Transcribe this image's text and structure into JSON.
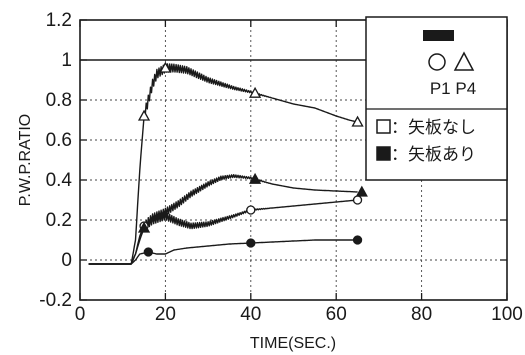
{
  "chart_data": {
    "type": "line",
    "xlabel": "TIME(SEC.)",
    "ylabel": "P.W.P.RATIO",
    "xlim": [
      0,
      100
    ],
    "ylim": [
      -0.2,
      1.2
    ],
    "x_ticks": [
      0,
      20,
      40,
      60,
      80,
      100
    ],
    "x_tick_labels": [
      "0",
      "20",
      "40",
      "60",
      "80",
      "100"
    ],
    "y_ticks": [
      -0.2,
      0,
      0.2,
      0.4,
      0.6,
      0.8,
      1,
      1.2
    ],
    "y_tick_labels": [
      "-0.2",
      "0",
      "0.2",
      "0.4",
      "0.6",
      "0.8",
      "1",
      "1.2"
    ],
    "grid": true,
    "reference_line": 1,
    "legend": {
      "position": "top-right",
      "marker_labels": "P1 P4",
      "entries": [
        {
          "marker": "open-square",
          "text": "：矢板なし"
        },
        {
          "marker": "filled-square",
          "text": "：矢板あり"
        }
      ]
    },
    "series": [
      {
        "marker": "triangle",
        "fill": "open",
        "oscillation": 0.025,
        "x": [
          2,
          12,
          13,
          14,
          15,
          16,
          17,
          18,
          20,
          22,
          25,
          28,
          30,
          33,
          36,
          40,
          45,
          50,
          55,
          60,
          63,
          65
        ],
        "y": [
          -0.02,
          -0.02,
          0.1,
          0.45,
          0.72,
          0.8,
          0.88,
          0.93,
          0.96,
          0.96,
          0.95,
          0.92,
          0.9,
          0.88,
          0.86,
          0.84,
          0.81,
          0.78,
          0.76,
          0.72,
          0.7,
          0.69
        ],
        "marker_x": [
          15,
          20,
          41,
          65
        ]
      },
      {
        "marker": "circle",
        "fill": "open",
        "oscillation": 0.022,
        "x": [
          2,
          12,
          13,
          14,
          15,
          17,
          20,
          23,
          26,
          30,
          33,
          36,
          40,
          45,
          50,
          55,
          60,
          65
        ],
        "y": [
          -0.02,
          -0.02,
          0.03,
          0.12,
          0.17,
          0.2,
          0.22,
          0.19,
          0.17,
          0.18,
          0.2,
          0.22,
          0.25,
          0.26,
          0.27,
          0.28,
          0.29,
          0.3
        ],
        "marker_x": [
          15,
          40,
          65
        ]
      },
      {
        "marker": "triangle",
        "fill": "filled",
        "oscillation": 0.022,
        "x": [
          2,
          12,
          13,
          14,
          15,
          16,
          17,
          20,
          23,
          26,
          30,
          33,
          36,
          40,
          45,
          50,
          55,
          60,
          65
        ],
        "y": [
          -0.02,
          -0.02,
          0.03,
          0.1,
          0.16,
          0.19,
          0.21,
          0.24,
          0.28,
          0.33,
          0.38,
          0.41,
          0.42,
          0.41,
          0.38,
          0.36,
          0.35,
          0.345,
          0.34
        ],
        "marker_x": [
          15,
          41,
          66
        ]
      },
      {
        "marker": "circle",
        "fill": "filled",
        "oscillation": 0,
        "x": [
          2,
          12,
          13,
          14,
          16,
          18,
          20,
          22,
          25,
          30,
          35,
          40,
          45,
          50,
          55,
          60,
          65
        ],
        "y": [
          -0.02,
          -0.02,
          0.0,
          0.03,
          0.04,
          0.03,
          0.03,
          0.05,
          0.06,
          0.07,
          0.08,
          0.085,
          0.09,
          0.095,
          0.1,
          0.1,
          0.1
        ],
        "marker_x": [
          16,
          40,
          65
        ]
      }
    ]
  }
}
